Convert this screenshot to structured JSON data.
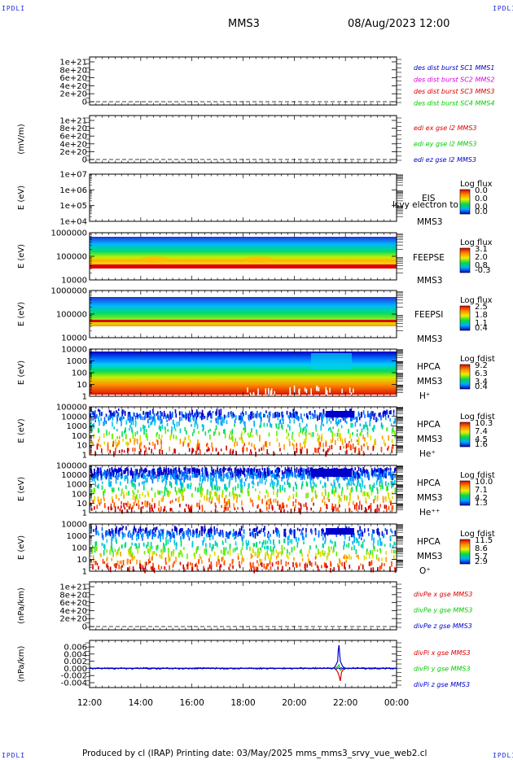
{
  "corner_tag": "IPDLI",
  "header": {
    "spacecraft": "MMS3",
    "datetime": "08/Aug/2023 12:00"
  },
  "footer": {
    "text": "Produced by cl (IRAP)   Printing date: 03/May/2025   mms_mms3_srvy_vue_web2.cl"
  },
  "colors": {
    "series_blue": "#0000cc",
    "series_red": "#dd0000",
    "series_green": "#00cc00",
    "series_magenta": "#dd00dd"
  },
  "chart_data": [
    {
      "id": "des-dist-burst",
      "type": "line",
      "ylabel": "",
      "y_ticks": [
        "1e+21",
        "8e+20",
        "6e+20",
        "4e+20",
        "2e+20",
        "0"
      ],
      "ylim": [
        0,
        1e+21
      ],
      "legend": [
        {
          "text": "des dist burst SC1 MMS1",
          "color": "#0000cc"
        },
        {
          "text": "des dist burst SC2 MMS2",
          "color": "#dd00dd"
        },
        {
          "text": "des dist burst SC3 MMS3",
          "color": "#dd0000"
        },
        {
          "text": "des dist burst SC4 MMS4",
          "color": "#00cc00"
        }
      ],
      "series": []
    },
    {
      "id": "edi",
      "type": "line",
      "ylabel": "(mV/m)",
      "y_ticks": [
        "1e+21",
        "8e+20",
        "6e+20",
        "4e+20",
        "2e+20",
        "0"
      ],
      "ylim": [
        0,
        1e+21
      ],
      "legend": [
        {
          "text": "edi ex gse l2 MMS3",
          "color": "#dd0000"
        },
        {
          "text": "edi ey gse l2 MMS3",
          "color": "#00cc00"
        },
        {
          "text": "edi ez gse l2 MMS3",
          "color": "#0000cc"
        }
      ],
      "series": []
    },
    {
      "id": "eis",
      "type": "heatmap",
      "ylabel": "E (eV)",
      "y_ticks": [
        "1e+07",
        "1e+06",
        "1e+05",
        "1e+04"
      ],
      "y_scale": "log",
      "labels": [
        "EIS",
        "MMS3"
      ],
      "overlay_text": "lsvy electron to",
      "colorbar": {
        "title": "Log flux",
        "ticks": [
          "0.0",
          "0.0",
          "0.0",
          "0.0"
        ]
      }
    },
    {
      "id": "feepse",
      "type": "heatmap",
      "ylabel": "E (eV)",
      "y_ticks": [
        "1000000",
        "100000",
        "10000"
      ],
      "y_scale": "log",
      "labels": [
        "FEEPSE",
        "MMS3"
      ],
      "colorbar": {
        "title": "Log flux",
        "ticks": [
          "3.1",
          "2.0",
          "0.8",
          "-0.3"
        ]
      }
    },
    {
      "id": "feepsi",
      "type": "heatmap",
      "ylabel": "E (eV)",
      "y_ticks": [
        "1000000",
        "100000",
        "10000"
      ],
      "y_scale": "log",
      "labels": [
        "FEEPSI",
        "MMS3"
      ],
      "colorbar": {
        "title": "Log flux",
        "ticks": [
          "2.5",
          "1.8",
          "1.1",
          "0.4"
        ]
      }
    },
    {
      "id": "hpca-h",
      "type": "heatmap",
      "ylabel": "E (eV)",
      "y_ticks": [
        "10000",
        "1000",
        "100",
        "10",
        "1"
      ],
      "y_scale": "log",
      "labels": [
        "HPCA",
        "MMS3",
        "H⁺"
      ],
      "colorbar": {
        "title": "Log fdist",
        "ticks": [
          "9.2",
          "6.3",
          "3.4",
          "0.4"
        ]
      }
    },
    {
      "id": "hpca-he",
      "type": "heatmap",
      "ylabel": "E (eV)",
      "y_ticks": [
        "100000",
        "10000",
        "1000",
        "100",
        "10",
        "1"
      ],
      "y_scale": "log",
      "labels": [
        "HPCA",
        "MMS3",
        "He⁺"
      ],
      "colorbar": {
        "title": "Log fdist",
        "ticks": [
          "10.3",
          "7.4",
          "4.5",
          "1.6"
        ]
      }
    },
    {
      "id": "hpca-he2",
      "type": "heatmap",
      "ylabel": "E (eV)",
      "y_ticks": [
        "100000",
        "10000",
        "1000",
        "100",
        "10",
        "1"
      ],
      "y_scale": "log",
      "labels": [
        "HPCA",
        "MMS3",
        "He⁺⁺"
      ],
      "colorbar": {
        "title": "Log fdist",
        "ticks": [
          "10.0",
          "7.1",
          "4.2",
          "1.3"
        ]
      }
    },
    {
      "id": "hpca-o",
      "type": "heatmap",
      "ylabel": "E (eV)",
      "y_ticks": [
        "10000",
        "1000",
        "100",
        "10",
        "1"
      ],
      "y_scale": "log",
      "labels": [
        "HPCA",
        "MMS3",
        "O⁺"
      ],
      "colorbar": {
        "title": "Log fdist",
        "ticks": [
          "11.5",
          "8.6",
          "5.7",
          "2.9"
        ]
      }
    },
    {
      "id": "divpe",
      "type": "line",
      "ylabel": "(nPa/km)",
      "y_ticks": [
        "1e+21",
        "8e+20",
        "6e+20",
        "4e+20",
        "2e+20",
        "0"
      ],
      "ylim": [
        0,
        1e+21
      ],
      "legend": [
        {
          "text": "divPe x gse MMS3",
          "color": "#dd0000"
        },
        {
          "text": "divPe y gse MMS3",
          "color": "#00cc00"
        },
        {
          "text": "divPe z gse MMS3",
          "color": "#0000cc"
        }
      ],
      "series": []
    },
    {
      "id": "divpi",
      "type": "line",
      "ylabel": "(nPa/km)",
      "y_ticks": [
        "0.006",
        "0.004",
        "0.002",
        "0.000",
        "-0.002",
        "-0.004"
      ],
      "ylim": [
        -0.005,
        0.007
      ],
      "legend": [
        {
          "text": "divPi x gse MMS3",
          "color": "#dd0000"
        },
        {
          "text": "divPi y gse MMS3",
          "color": "#00cc00"
        },
        {
          "text": "divPi z gse MMS3",
          "color": "#0000cc"
        }
      ],
      "series": [
        {
          "name": "divPi x gse MMS3",
          "x": [
            0,
            9.6,
            9.7,
            9.75,
            9.8,
            9.85,
            9.9,
            10.0,
            12.0
          ],
          "y": [
            0,
            0,
            -0.001,
            -0.002,
            -0.0035,
            -0.001,
            -0.0005,
            0,
            0
          ]
        },
        {
          "name": "divPi y gse MMS3",
          "x": [
            0,
            9.6,
            9.7,
            9.75,
            9.8,
            9.9,
            12.0
          ],
          "y": [
            0,
            0,
            0.0005,
            0.001,
            -0.0005,
            0,
            0
          ]
        },
        {
          "name": "divPi z gse MMS3",
          "x": [
            0,
            9.5,
            9.6,
            9.7,
            9.72,
            9.75,
            9.8,
            9.9,
            10.0,
            12.0
          ],
          "y": [
            0,
            0,
            0.0005,
            0.002,
            0.005,
            0.0065,
            0.002,
            0.0005,
            0,
            0
          ]
        }
      ]
    }
  ],
  "x_axis": {
    "ticks": [
      "12:00",
      "14:00",
      "16:00",
      "18:00",
      "20:00",
      "22:00",
      "00:00"
    ],
    "xlim_hours": [
      0,
      12
    ]
  }
}
